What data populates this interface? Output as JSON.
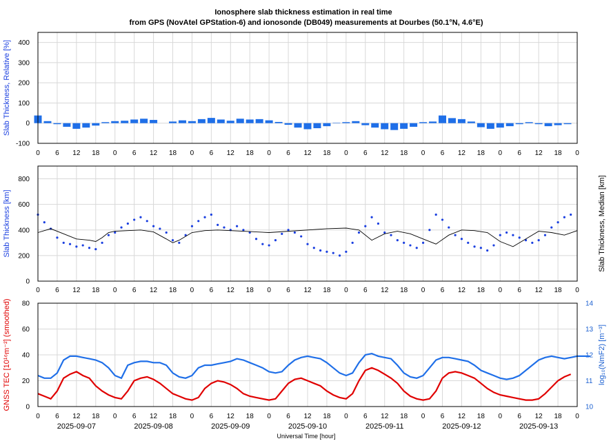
{
  "title": {
    "line1": "Ionosphere slab thickness estimation in real time",
    "line2": "from GPS (NovAtel GPStation-6) and ionosonde (DB049) measurements at Dourbes (50.1°N, 4.6°E)"
  },
  "x_axis": {
    "label": "Universal Time [hour]",
    "hour_ticks": [
      "0",
      "6",
      "12",
      "18",
      "0",
      "6",
      "12",
      "18",
      "0",
      "6",
      "12",
      "18",
      "0",
      "6",
      "12",
      "18",
      "0",
      "6",
      "12",
      "18",
      "0",
      "6",
      "12",
      "18",
      "0",
      "6",
      "12",
      "18",
      "0"
    ],
    "dates": [
      "2025-09-07",
      "2025-09-08",
      "2025-09-09",
      "2025-09-10",
      "2025-09-11",
      "2025-09-12",
      "2025-09-13"
    ]
  },
  "chart_data": [
    {
      "id": "relative",
      "type": "bar",
      "ylabel": "Slab Thickness, Relative [%]",
      "ylabel_color": "#1a3fe0",
      "ylim": [
        -100,
        450
      ],
      "yticks": [
        -100,
        0,
        100,
        200,
        300,
        400
      ],
      "grid": true,
      "series": [
        {
          "color": "#1f6fe8",
          "x_hours": [
            0,
            3,
            6,
            9,
            12,
            15,
            18,
            21,
            24,
            27,
            30,
            33,
            36,
            42,
            45,
            48,
            51,
            54,
            57,
            60,
            63,
            66,
            69,
            72,
            75,
            78,
            81,
            84,
            87,
            90,
            93,
            96,
            99,
            102,
            105,
            108,
            111,
            114,
            117,
            120,
            123,
            126,
            129,
            132,
            135,
            138,
            141,
            144,
            147,
            150,
            153,
            156,
            159,
            162,
            165
          ],
          "values": [
            38,
            10,
            -5,
            -18,
            -28,
            -22,
            -12,
            5,
            10,
            12,
            18,
            22,
            16,
            8,
            14,
            10,
            20,
            26,
            18,
            12,
            22,
            18,
            20,
            14,
            6,
            -8,
            -22,
            -30,
            -25,
            -15,
            2,
            5,
            10,
            -10,
            -22,
            -30,
            -34,
            -28,
            -18,
            5,
            8,
            38,
            25,
            20,
            8,
            -20,
            -28,
            -22,
            -15,
            -5,
            5,
            -5,
            -15,
            -10,
            -5
          ]
        }
      ]
    },
    {
      "id": "slab",
      "type": "scatter",
      "ylabel": "Slab Thickness [km]",
      "ylabel_color": "#1a3fe0",
      "ylabel_right": "Slab Thickness, Median [km]",
      "ylim": [
        0,
        900
      ],
      "yticks": [
        0,
        200,
        400,
        600,
        800
      ],
      "grid": true,
      "series": [
        {
          "color": "#1a3fe0",
          "x_hours": [
            0,
            2,
            4,
            6,
            8,
            10,
            12,
            14,
            16,
            18,
            20,
            22,
            24,
            26,
            28,
            30,
            32,
            34,
            36,
            38,
            40,
            42,
            44,
            46,
            48,
            50,
            52,
            54,
            56,
            58,
            60,
            62,
            64,
            66,
            68,
            70,
            72,
            74,
            76,
            78,
            80,
            82,
            84,
            86,
            88,
            90,
            92,
            94,
            96,
            98,
            100,
            102,
            104,
            106,
            108,
            110,
            112,
            114,
            116,
            118,
            120,
            122,
            124,
            126,
            128,
            130,
            132,
            134,
            136,
            138,
            140,
            142,
            144,
            146,
            148,
            150,
            152,
            154,
            156,
            158,
            160,
            162,
            164,
            166
          ],
          "values": [
            520,
            460,
            410,
            340,
            300,
            290,
            270,
            280,
            260,
            250,
            300,
            360,
            380,
            420,
            450,
            480,
            500,
            470,
            430,
            410,
            380,
            320,
            300,
            360,
            430,
            470,
            500,
            520,
            440,
            420,
            400,
            430,
            400,
            380,
            330,
            290,
            280,
            320,
            370,
            400,
            380,
            350,
            290,
            260,
            240,
            230,
            220,
            200,
            230,
            300,
            380,
            430,
            500,
            450,
            380,
            360,
            320,
            300,
            280,
            260,
            300,
            400,
            520,
            480,
            420,
            360,
            330,
            300,
            270,
            260,
            240,
            280,
            360,
            380,
            360,
            340,
            320,
            300,
            320,
            360,
            420,
            460,
            500,
            520
          ]
        },
        {
          "color": "#000000",
          "x_hours": [
            0,
            4,
            8,
            12,
            16,
            18,
            20,
            22,
            24,
            28,
            32,
            36,
            40,
            42,
            44,
            48,
            52,
            56,
            60,
            64,
            68,
            72,
            90,
            96,
            100,
            104,
            108,
            112,
            116,
            120,
            124,
            128,
            132,
            136,
            140,
            144,
            148,
            152,
            156,
            160,
            164,
            168
          ],
          "values": [
            380,
            410,
            370,
            330,
            320,
            310,
            340,
            380,
            390,
            395,
            400,
            385,
            330,
            300,
            320,
            380,
            395,
            400,
            395,
            390,
            385,
            380,
            410,
            415,
            400,
            320,
            370,
            390,
            370,
            330,
            290,
            360,
            400,
            395,
            380,
            310,
            270,
            330,
            390,
            380,
            360,
            395
          ]
        }
      ]
    },
    {
      "id": "tec",
      "type": "line",
      "ylabel": "GNSS TEC [10¹⁶m⁻²] (smoothed)",
      "ylabel_color": "#e00000",
      "ylabel_right": "log₁₀(NmF2) [m⁻³]",
      "ylabel_right_color": "#1a5fd0",
      "ylim": [
        0,
        80
      ],
      "yticks": [
        0,
        20,
        40,
        60,
        80
      ],
      "y2lim": [
        10,
        14
      ],
      "y2ticks": [
        10,
        11,
        12,
        13,
        14
      ],
      "grid": true,
      "series": [
        {
          "name": "",
          "axis": "left",
          "color": "#e00000",
          "x_hours": [
            0,
            2,
            4,
            6,
            8,
            10,
            12,
            14,
            16,
            18,
            20,
            22,
            24,
            26,
            28,
            30,
            32,
            34,
            36,
            38,
            40,
            42,
            44,
            46,
            48,
            50,
            52,
            54,
            56,
            58,
            60,
            62,
            64,
            66,
            68,
            70,
            72,
            74,
            76,
            78,
            80,
            82,
            84,
            86,
            88,
            90,
            92,
            94,
            96,
            98,
            100,
            102,
            104,
            106,
            108,
            110,
            112,
            114,
            116,
            118,
            120,
            122,
            124,
            126,
            128,
            130,
            132,
            134,
            136,
            138,
            140,
            142,
            144,
            146,
            148,
            150,
            152,
            154,
            156,
            158,
            160,
            162,
            164,
            166
          ],
          "values": [
            10,
            8,
            6,
            12,
            22,
            25,
            27,
            24,
            22,
            16,
            12,
            9,
            7,
            6,
            12,
            20,
            22,
            23,
            21,
            18,
            14,
            10,
            8,
            6,
            5,
            7,
            14,
            18,
            20,
            19,
            17,
            14,
            10,
            8,
            7,
            6,
            5,
            6,
            12,
            18,
            21,
            22,
            20,
            18,
            16,
            12,
            9,
            7,
            6,
            10,
            20,
            28,
            30,
            28,
            25,
            22,
            18,
            12,
            8,
            6,
            5,
            6,
            12,
            22,
            26,
            27,
            26,
            24,
            22,
            18,
            14,
            11,
            9,
            8,
            7,
            6,
            5,
            5,
            6,
            10,
            15,
            20,
            23,
            25
          ]
        },
        {
          "name": "",
          "axis": "right",
          "color": "#1f6fe8",
          "x_hours": [
            0,
            2,
            4,
            6,
            8,
            10,
            12,
            14,
            16,
            18,
            20,
            22,
            24,
            26,
            28,
            30,
            32,
            34,
            36,
            38,
            40,
            42,
            44,
            46,
            48,
            50,
            52,
            54,
            56,
            58,
            60,
            62,
            64,
            66,
            68,
            70,
            72,
            74,
            76,
            78,
            80,
            82,
            84,
            86,
            88,
            90,
            92,
            94,
            96,
            98,
            100,
            102,
            104,
            106,
            108,
            110,
            112,
            114,
            116,
            118,
            120,
            122,
            124,
            126,
            128,
            130,
            132,
            134,
            136,
            138,
            140,
            142,
            144,
            146,
            148,
            150,
            152,
            154,
            156,
            158,
            160,
            162,
            164,
            166,
            168,
            172
          ],
          "values": [
            11.2,
            11.1,
            11.1,
            11.3,
            11.8,
            11.95,
            11.95,
            11.9,
            11.85,
            11.8,
            11.7,
            11.5,
            11.2,
            11.1,
            11.6,
            11.7,
            11.75,
            11.75,
            11.7,
            11.7,
            11.6,
            11.3,
            11.15,
            11.1,
            11.2,
            11.5,
            11.6,
            11.6,
            11.65,
            11.7,
            11.75,
            11.85,
            11.8,
            11.7,
            11.6,
            11.5,
            11.35,
            11.3,
            11.35,
            11.6,
            11.8,
            11.9,
            11.95,
            11.9,
            11.85,
            11.7,
            11.5,
            11.3,
            11.2,
            11.3,
            11.7,
            12.0,
            12.05,
            11.95,
            11.9,
            11.85,
            11.6,
            11.3,
            11.15,
            11.1,
            11.2,
            11.5,
            11.8,
            11.9,
            11.9,
            11.85,
            11.8,
            11.75,
            11.6,
            11.4,
            11.3,
            11.2,
            11.1,
            11.05,
            11.1,
            11.2,
            11.4,
            11.6,
            11.8,
            11.9,
            11.95,
            11.9,
            11.85,
            11.9,
            11.95,
            11.95
          ]
        }
      ]
    }
  ]
}
